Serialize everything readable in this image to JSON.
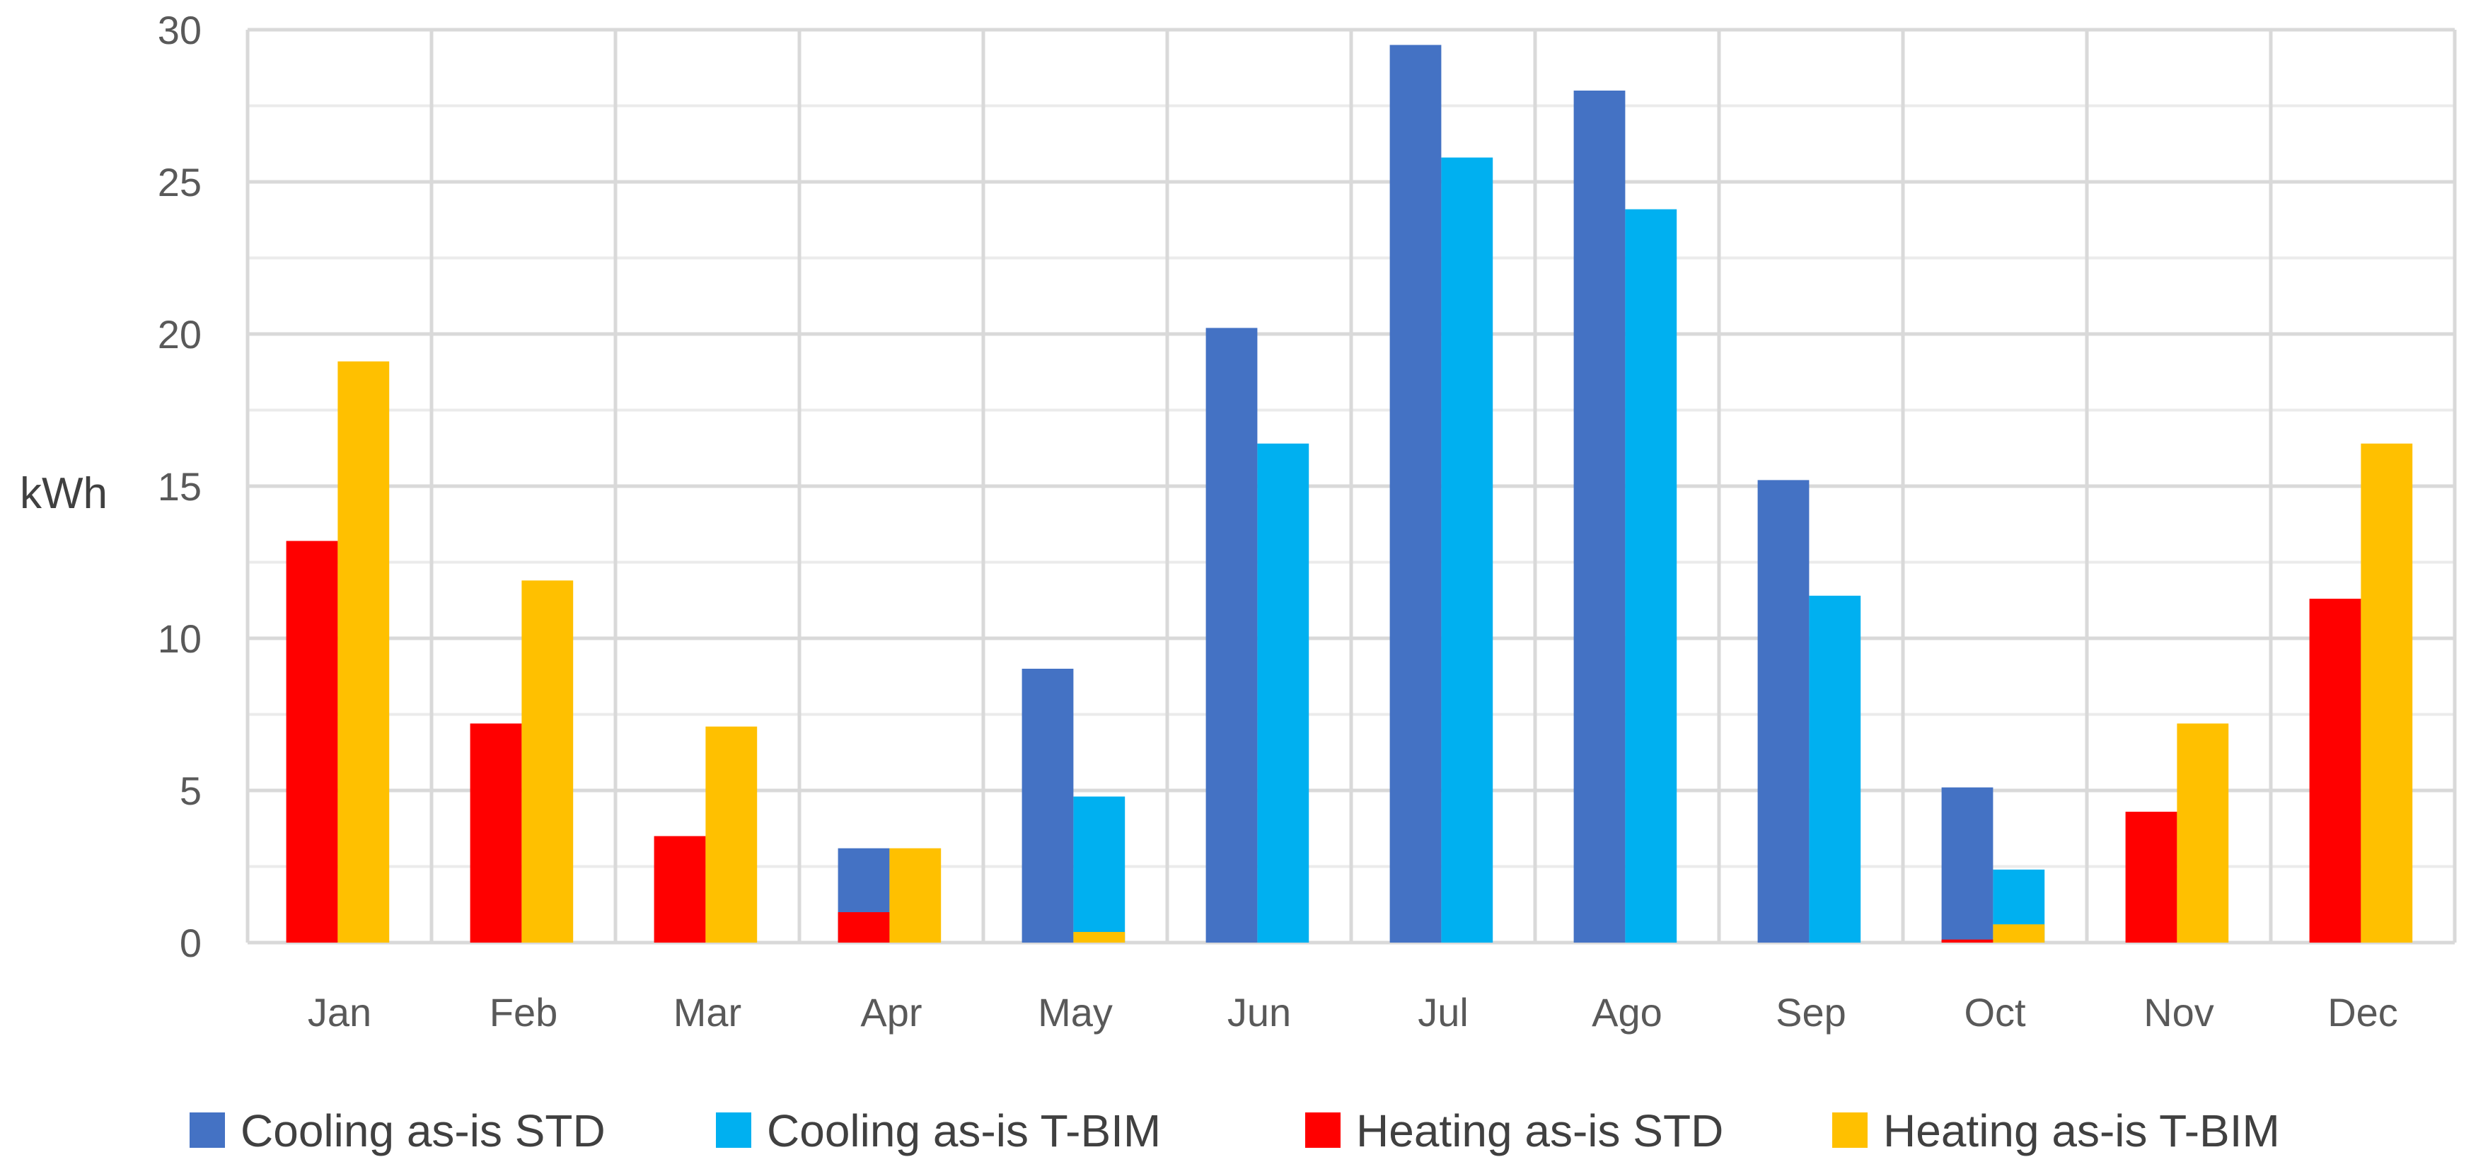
{
  "chart_data": {
    "type": "bar",
    "title": "",
    "xlabel": "",
    "ylabel": "kWh",
    "ylim": [
      0,
      30
    ],
    "yticks": [
      0,
      5,
      10,
      15,
      20,
      25,
      30
    ],
    "grid": true,
    "legend_position": "bottom",
    "categories": [
      "Jan",
      "Feb",
      "Mar",
      "Apr",
      "May",
      "Jun",
      "Jul",
      "Ago",
      "Sep",
      "Oct",
      "Nov",
      "Dec"
    ],
    "series": [
      {
        "name": "Cooling as-is STD",
        "color": "#4472C4",
        "values": [
          0,
          0,
          0,
          3.1,
          9.0,
          20.2,
          29.5,
          28.0,
          15.2,
          5.1,
          0,
          0
        ]
      },
      {
        "name": "Cooling as-is T-BIM",
        "color": "#00B0F0",
        "values": [
          0,
          0,
          0,
          0,
          4.8,
          16.4,
          25.8,
          24.1,
          11.4,
          2.4,
          0,
          0
        ]
      },
      {
        "name": "Heating as-is STD",
        "color": "#FF0000",
        "values": [
          13.2,
          7.2,
          3.5,
          1.0,
          0,
          0,
          0,
          0,
          0,
          0.1,
          4.3,
          11.3
        ]
      },
      {
        "name": "Heating as-is T-BIM",
        "color": "#FFC000",
        "values": [
          19.1,
          11.9,
          7.1,
          3.1,
          0.35,
          0,
          0,
          0,
          0,
          0.6,
          7.2,
          16.4
        ]
      }
    ]
  },
  "colors": {
    "grid": "#d9d9d9",
    "axis": "#bfbfbf"
  }
}
